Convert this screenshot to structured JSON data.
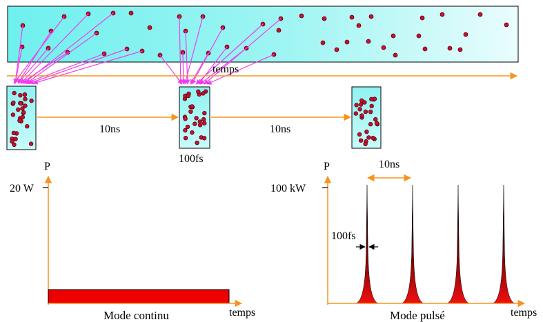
{
  "labels": {
    "time_top": "temps",
    "interval_1": "10ns",
    "interval_2": "10ns",
    "pulse_duration_top": "100fs",
    "p_axis_left": "P",
    "p_axis_right": "P",
    "power_cw": "20 W",
    "power_pulsed": "100 kW",
    "period_label": "10ns",
    "pulse_width_label": "100fs",
    "mode_cw": "Mode continu",
    "mode_pulsed": "Mode pulsé",
    "time_axis_left": "temps",
    "time_axis_right": "temps"
  },
  "colors": {
    "beam_fill": "#7ff0ef",
    "beam_fill_light": "#d9fbfb",
    "photon": "#c8102e",
    "photon_stroke": "#5a0010",
    "arrow_magenta": "#f03cf0",
    "arrow_orange": "#f7941d",
    "cw_bar": "#ee0000",
    "pulse_red": "#dd0000",
    "axis_orange": "#f7941d"
  }
}
